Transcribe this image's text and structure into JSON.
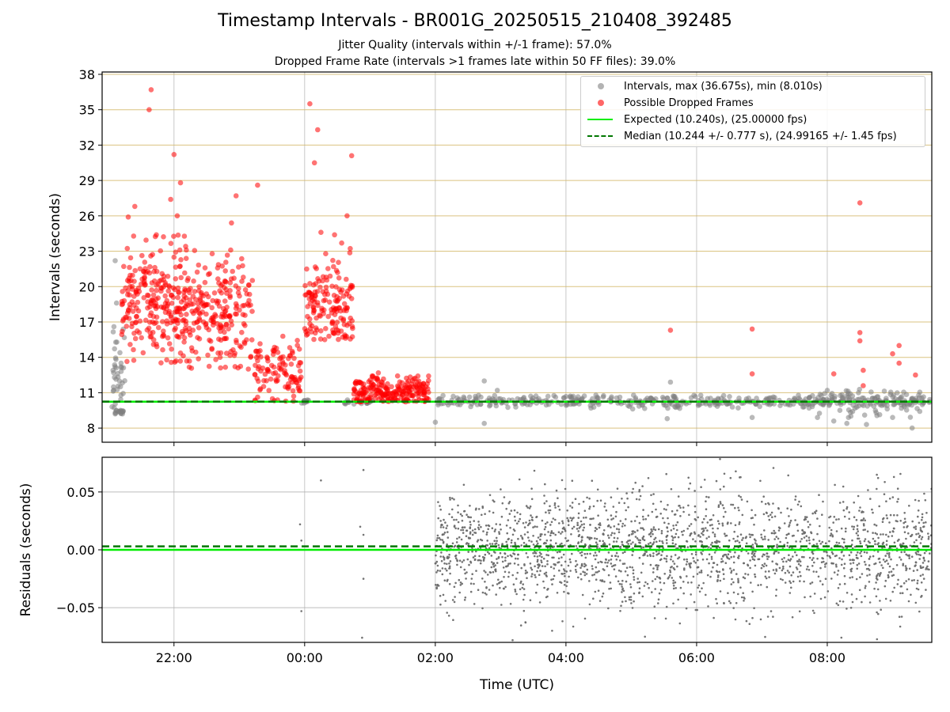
{
  "figure": {
    "title": "Timestamp Intervals - BR001G_20250515_210408_392485",
    "subtitle_1": "Jitter Quality (intervals within +/-1 frame): 57.0%",
    "subtitle_2": "Dropped Frame Rate (intervals >1 frames late within 50 FF files): 39.0%"
  },
  "legend": {
    "placement": "top-right",
    "items": [
      {
        "label": "Intervals, max (36.675s), min (8.010s)",
        "kind": "marker",
        "color": "#808080"
      },
      {
        "label": "Possible Dropped Frames",
        "kind": "marker",
        "color": "#ff0000"
      },
      {
        "label": "Expected (10.240s), (25.00000 fps)",
        "kind": "line",
        "color": "#00ee00"
      },
      {
        "label": "Median (10.244 +/- 0.777 s), (24.99165 +/- 1.45 fps)",
        "kind": "dashed",
        "color": "#007700"
      }
    ]
  },
  "colors": {
    "interval_points": "#808080",
    "dropped_points": "#ff0000",
    "expected_line": "#00ee00",
    "median_line": "#007700",
    "horizontal_grid_top": "#d4b86a",
    "grid": "#b0b0b0",
    "residual_points": "#6b6b6b"
  },
  "chart_data": [
    {
      "type": "scatter",
      "panel": "top",
      "ylabel": "Intervals (seconds)",
      "xlabel": "",
      "x_unit": "hours since 00:00 UTC",
      "xlim": [
        -3.1,
        9.6
      ],
      "ylim": [
        6.8,
        38.2
      ],
      "yticks": [
        8,
        11,
        14,
        17,
        20,
        23,
        26,
        29,
        32,
        35,
        38
      ],
      "xticks": [
        -2,
        0,
        2,
        4,
        6,
        8
      ],
      "xtick_labels": [
        "22:00",
        "00:00",
        "02:00",
        "04:00",
        "06:00",
        "08:00"
      ],
      "expected_y": 10.24,
      "median_y": 10.244,
      "grid": true,
      "series": [
        {
          "name": "Intervals, max (36.675s), min (8.010s)",
          "description_clusters": [
            {
              "x_range": [
                -2.95,
                -2.75
              ],
              "y_range": [
                9.2,
                22.2
              ],
              "count": 55,
              "y_center": 12
            },
            {
              "x_range": [
                -0.05,
                0.1
              ],
              "y_range": [
                10.1,
                10.5
              ],
              "count": 12,
              "y_center": 10.3
            },
            {
              "x_range": [
                0.6,
                1.05
              ],
              "y_range": [
                9.8,
                10.4
              ],
              "count": 20,
              "y_center": 10.2
            },
            {
              "x_range": [
                2.0,
                9.6
              ],
              "y_range": [
                9.6,
                10.8
              ],
              "count": 420,
              "y_center": 10.24
            },
            {
              "x_range": [
                7.7,
                9.5
              ],
              "y_range": [
                8.8,
                11.4
              ],
              "count": 90,
              "y_center": 10.2
            }
          ],
          "points": [
            {
              "x": -2.9,
              "y": 22.2
            },
            {
              "x": -2.88,
              "y": 18.6
            },
            {
              "x": -2.92,
              "y": 16.6
            },
            {
              "x": 2.0,
              "y": 8.5
            },
            {
              "x": 2.75,
              "y": 8.4
            },
            {
              "x": 2.95,
              "y": 11.2
            },
            {
              "x": 2.75,
              "y": 12.0
            },
            {
              "x": 5.55,
              "y": 8.8
            },
            {
              "x": 5.6,
              "y": 11.9
            },
            {
              "x": 6.85,
              "y": 8.9
            },
            {
              "x": 7.85,
              "y": 8.9
            },
            {
              "x": 8.0,
              "y": 11.2
            },
            {
              "x": 8.1,
              "y": 8.6
            },
            {
              "x": 8.3,
              "y": 8.4
            },
            {
              "x": 8.6,
              "y": 8.3
            },
            {
              "x": 9.0,
              "y": 8.9
            },
            {
              "x": 9.3,
              "y": 8.0
            }
          ]
        },
        {
          "name": "Possible Dropped Frames",
          "description_clusters": [
            {
              "x_range": [
                -2.8,
                -1.8
              ],
              "y_range": [
                13.5,
                24.5
              ],
              "count": 260,
              "y_center": 18.5
            },
            {
              "x_range": [
                -1.8,
                -0.8
              ],
              "y_range": [
                13.0,
                23.8
              ],
              "count": 210,
              "y_center": 17.5
            },
            {
              "x_range": [
                -0.8,
                -0.05
              ],
              "y_range": [
                10.2,
                16.8
              ],
              "count": 110,
              "y_center": 12.5
            },
            {
              "x_range": [
                0.0,
                0.75
              ],
              "y_range": [
                15.5,
                24.5
              ],
              "count": 160,
              "y_center": 18.5
            },
            {
              "x_range": [
                0.75,
                1.9
              ],
              "y_range": [
                10.2,
                13.2
              ],
              "count": 230,
              "y_center": 11.1
            }
          ],
          "points": [
            {
              "x": -2.35,
              "y": 36.7
            },
            {
              "x": -2.38,
              "y": 35.0
            },
            {
              "x": -2.0,
              "y": 31.2
            },
            {
              "x": -1.9,
              "y": 28.8
            },
            {
              "x": -2.05,
              "y": 27.4
            },
            {
              "x": -2.6,
              "y": 26.8
            },
            {
              "x": -2.7,
              "y": 25.9
            },
            {
              "x": -1.95,
              "y": 26.0
            },
            {
              "x": -1.05,
              "y": 27.7
            },
            {
              "x": -0.72,
              "y": 28.6
            },
            {
              "x": -1.12,
              "y": 25.4
            },
            {
              "x": 0.08,
              "y": 35.5
            },
            {
              "x": 0.2,
              "y": 33.3
            },
            {
              "x": 0.15,
              "y": 30.5
            },
            {
              "x": 0.72,
              "y": 31.1
            },
            {
              "x": 0.65,
              "y": 26.0
            },
            {
              "x": 0.25,
              "y": 24.6
            },
            {
              "x": 5.6,
              "y": 16.3
            },
            {
              "x": 6.85,
              "y": 16.4
            },
            {
              "x": 6.85,
              "y": 12.6
            },
            {
              "x": 8.1,
              "y": 12.6
            },
            {
              "x": 8.5,
              "y": 27.1
            },
            {
              "x": 8.5,
              "y": 16.1
            },
            {
              "x": 8.5,
              "y": 15.4
            },
            {
              "x": 8.55,
              "y": 12.9
            },
            {
              "x": 9.0,
              "y": 14.3
            },
            {
              "x": 9.1,
              "y": 15.0
            },
            {
              "x": 9.35,
              "y": 12.5
            },
            {
              "x": 9.1,
              "y": 13.5
            },
            {
              "x": 8.55,
              "y": 11.6
            }
          ]
        }
      ]
    },
    {
      "type": "scatter",
      "panel": "bottom",
      "ylabel": "Residuals (seconds)",
      "xlabel": "Time (UTC)",
      "x_unit": "hours since 00:00 UTC",
      "xlim": [
        -3.1,
        9.6
      ],
      "ylim": [
        -0.08,
        0.08
      ],
      "yticks": [
        0.05,
        0.0,
        -0.05
      ],
      "ytick_labels": [
        "0.05",
        "0.00",
        "−0.05"
      ],
      "xticks": [
        -2,
        0,
        2,
        4,
        6,
        8
      ],
      "xtick_labels": [
        "22:00",
        "00:00",
        "02:00",
        "04:00",
        "06:00",
        "08:00"
      ],
      "expected_y": 0.0,
      "median_y": 0.003,
      "grid": true,
      "series": [
        {
          "name": "",
          "description_clusters": [
            {
              "x_range": [
                2.0,
                9.6
              ],
              "y_range": [
                -0.08,
                0.08
              ],
              "count": 2200,
              "y_center": 0.0,
              "spread": 0.025
            }
          ],
          "points": [
            {
              "x": -0.07,
              "y": 0.022
            },
            {
              "x": -0.05,
              "y": 0.008
            },
            {
              "x": -0.05,
              "y": -0.053
            },
            {
              "x": 0.25,
              "y": 0.06
            },
            {
              "x": 0.9,
              "y": 0.069
            },
            {
              "x": 0.85,
              "y": 0.02
            },
            {
              "x": 0.9,
              "y": 0.013
            },
            {
              "x": 0.9,
              "y": -0.025
            },
            {
              "x": 0.88,
              "y": -0.076
            }
          ]
        }
      ]
    }
  ]
}
